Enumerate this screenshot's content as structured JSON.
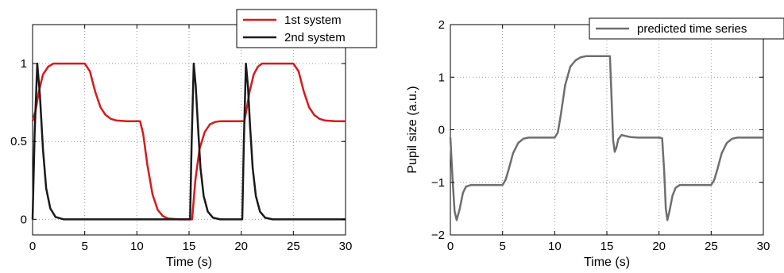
{
  "chart_data": [
    {
      "type": "line",
      "title": "",
      "xlabel": "Time (s)",
      "ylabel": "",
      "xlim": [
        0,
        30
      ],
      "ylim": [
        -0.1,
        1.25
      ],
      "xticks": [
        "0",
        "5",
        "10",
        "15",
        "20",
        "25",
        "30"
      ],
      "yticks": [
        "0",
        "0.5",
        "1"
      ],
      "grid": true,
      "legend_position": "top-right",
      "series": [
        {
          "name": "1st system",
          "color": "#d7191c",
          "x": [
            0,
            0.3,
            0.6,
            1.0,
            1.5,
            2.0,
            3.0,
            5.0,
            5.5,
            6.0,
            6.5,
            7.0,
            7.5,
            8.0,
            9.0,
            10.3,
            10.6,
            11.0,
            11.5,
            12.0,
            12.5,
            13.0,
            14.0,
            15.3,
            15.6,
            16.0,
            16.5,
            17.0,
            17.5,
            18.0,
            19.0,
            20.3,
            20.5,
            20.8,
            21.2,
            21.6,
            22.0,
            22.5,
            23.0,
            25.0,
            25.5,
            26.0,
            26.5,
            27.0,
            27.5,
            28.0,
            29.0,
            30.0
          ],
          "values": [
            0.63,
            0.7,
            0.82,
            0.93,
            0.98,
            1.0,
            1.0,
            1.0,
            0.95,
            0.82,
            0.72,
            0.67,
            0.645,
            0.635,
            0.63,
            0.63,
            0.55,
            0.35,
            0.16,
            0.06,
            0.02,
            0.005,
            0.0,
            0.0,
            0.25,
            0.45,
            0.56,
            0.61,
            0.625,
            0.63,
            0.63,
            0.63,
            0.7,
            0.82,
            0.93,
            0.98,
            1.0,
            1.0,
            1.0,
            1.0,
            0.95,
            0.82,
            0.72,
            0.67,
            0.645,
            0.635,
            0.63,
            0.63
          ]
        },
        {
          "name": "2nd system",
          "color": "#1a1a1a",
          "x": [
            0,
            0.2,
            0.45,
            0.7,
            1.0,
            1.3,
            1.7,
            2.2,
            3.0,
            15.1,
            15.25,
            15.45,
            15.65,
            15.85,
            16.1,
            16.4,
            16.8,
            17.3,
            18.0,
            20.1,
            20.25,
            20.45,
            20.65,
            20.85,
            21.1,
            21.4,
            21.8,
            22.3,
            23.0,
            30.0
          ],
          "values": [
            0,
            0.55,
            1.0,
            0.8,
            0.45,
            0.2,
            0.07,
            0.015,
            0,
            0,
            0.5,
            1.0,
            0.85,
            0.6,
            0.33,
            0.15,
            0.05,
            0.01,
            0,
            0,
            0.5,
            1.0,
            0.85,
            0.6,
            0.33,
            0.15,
            0.05,
            0.01,
            0,
            0
          ]
        }
      ]
    },
    {
      "type": "line",
      "title": "",
      "xlabel": "Time (s)",
      "ylabel": "Pupil size (a.u.)",
      "xlim": [
        0,
        30
      ],
      "ylim": [
        -2,
        2
      ],
      "xticks": [
        "0",
        "5",
        "10",
        "15",
        "20",
        "25",
        "30"
      ],
      "yticks": [
        "−2",
        "−1",
        "0",
        "1",
        "2"
      ],
      "grid": true,
      "legend_position": "top-right",
      "series": [
        {
          "name": "predicted time series",
          "color": "#6e6e6e",
          "x": [
            0,
            0.2,
            0.4,
            0.6,
            0.9,
            1.2,
            1.5,
            2.0,
            3.0,
            5.0,
            5.3,
            5.6,
            6.0,
            6.5,
            7.0,
            7.5,
            8.0,
            9.0,
            10.0,
            10.3,
            10.6,
            11.0,
            11.5,
            12.0,
            12.5,
            13.0,
            14.0,
            15.3,
            15.45,
            15.6,
            15.75,
            15.9,
            16.1,
            16.4,
            16.8,
            17.3,
            18.0,
            20.0,
            20.3,
            20.5,
            20.65,
            20.8,
            21.0,
            21.3,
            21.6,
            22.0,
            22.5,
            23.0,
            25.0,
            25.3,
            25.6,
            26.0,
            26.5,
            27.0,
            27.5,
            28.0,
            29.0,
            30.0
          ],
          "values": [
            -0.15,
            -0.9,
            -1.55,
            -1.72,
            -1.5,
            -1.2,
            -1.08,
            -1.05,
            -1.05,
            -1.05,
            -0.95,
            -0.75,
            -0.45,
            -0.25,
            -0.17,
            -0.15,
            -0.15,
            -0.15,
            -0.15,
            -0.05,
            0.3,
            0.85,
            1.2,
            1.32,
            1.38,
            1.4,
            1.4,
            1.4,
            0.6,
            -0.2,
            -0.42,
            -0.35,
            -0.18,
            -0.1,
            -0.12,
            -0.14,
            -0.15,
            -0.15,
            -0.16,
            -0.8,
            -1.5,
            -1.72,
            -1.55,
            -1.25,
            -1.1,
            -1.05,
            -1.05,
            -1.05,
            -1.05,
            -0.95,
            -0.75,
            -0.45,
            -0.25,
            -0.17,
            -0.15,
            -0.15,
            -0.15,
            -0.15
          ]
        }
      ]
    }
  ]
}
